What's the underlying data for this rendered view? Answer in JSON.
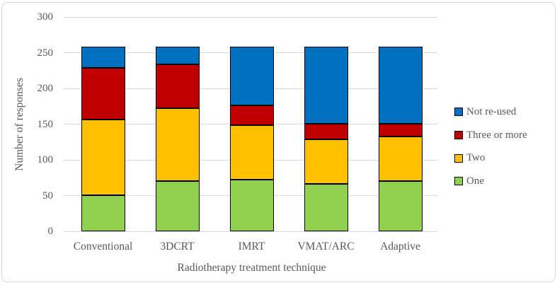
{
  "figure": {
    "background": "#ffffff",
    "border_color": "#d7d7d7",
    "text_color": "#595959",
    "gridline_color": "#d9d9d9",
    "bar_outline_color": "#000000"
  },
  "chart_data": {
    "type": "bar",
    "stacked": true,
    "title": "",
    "xlabel": "Radiotherapy treatment technique",
    "ylabel": "Number of responses",
    "categories": [
      "Conventional",
      "3DCRT",
      "IMRT",
      "VMAT/ARC",
      "Adaptive"
    ],
    "series": [
      {
        "name": "One",
        "color": "#92D050",
        "values": [
          51,
          70,
          72,
          66,
          70
        ]
      },
      {
        "name": "Two",
        "color": "#FFC000",
        "values": [
          105,
          102,
          77,
          63,
          63
        ]
      },
      {
        "name": "Three or more",
        "color": "#C00000",
        "values": [
          73,
          62,
          27,
          22,
          18
        ]
      },
      {
        "name": "Not re-used",
        "color": "#0070C0",
        "values": [
          29,
          24,
          82,
          107,
          107
        ]
      }
    ],
    "totals": [
      258,
      258,
      258,
      258,
      258
    ],
    "ylim": [
      0,
      300
    ],
    "yticks": [
      0,
      50,
      100,
      150,
      200,
      250,
      300
    ],
    "grid": true,
    "legend_position": "right",
    "legend_order": [
      "Not re-used",
      "Three or more",
      "Two",
      "One"
    ]
  }
}
